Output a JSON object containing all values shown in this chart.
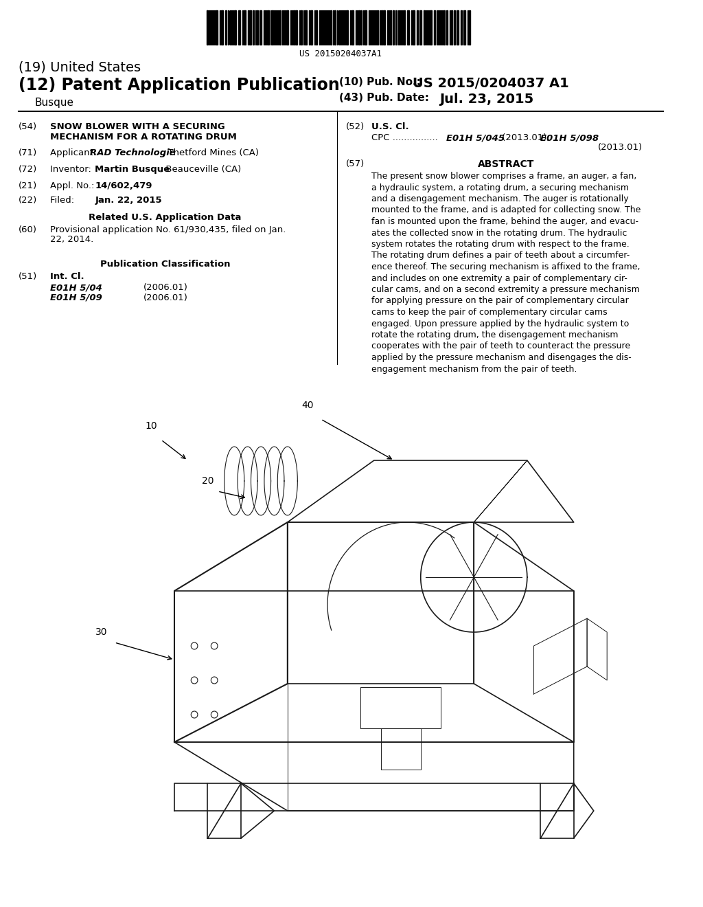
{
  "background_color": "#ffffff",
  "barcode_text": "US 20150204037A1",
  "line19": "(19) United States",
  "line12": "(12) Patent Application Publication",
  "inventor_last": "Busque",
  "pub_no_label": "(10) Pub. No.:",
  "pub_no": "US 2015/0204037 A1",
  "pub_date_label": "(43) Pub. Date:",
  "pub_date": "Jul. 23, 2015",
  "field54_label": "(54)",
  "field54": "SNOW BLOWER WITH A SECURING\nMECHANISM FOR A ROTATING DRUM",
  "field71_label": "(71)",
  "field71": "Applicant: RAD Technologie, Thetford Mines (CA)",
  "field72_label": "(72)",
  "field72": "Inventor:   Martin Busque, Beauceville (CA)",
  "field21_label": "(21)",
  "field21": "Appl. No.:  14/602,479",
  "field22_label": "(22)",
  "field22": "Filed:         Jan. 22, 2015",
  "related_header": "Related U.S. Application Data",
  "field60_label": "(60)",
  "field60": "Provisional application No. 61/930,435, filed on Jan.\n22, 2014.",
  "pub_class_header": "Publication Classification",
  "field51_label": "(51)",
  "field51_header": "Int. Cl.",
  "field51_a": "E01H 5/04",
  "field51_a_date": "(2006.01)",
  "field51_b": "E01H 5/09",
  "field51_b_date": "(2006.01)",
  "field52_label": "(52)",
  "field52_header": "U.S. Cl.",
  "field52_cpc": "CPC ................ E01H 5/045 (2013.01); E01H 5/098\n(2013.01)",
  "field57_label": "(57)",
  "field57_header": "ABSTRACT",
  "abstract": "The present snow blower comprises a frame, an auger, a fan,\na hydraulic system, a rotating drum, a securing mechanism\nand a disengagement mechanism. The auger is rotationally\nmounted to the frame, and is adapted for collecting snow. The\nfan is mounted upon the frame, behind the auger, and evacu-\nates the collected snow in the rotating drum. The hydraulic\nsystem rotates the rotating drum with respect to the frame.\nThe rotating drum defines a pair of teeth about a circumfer-\nence thereof. The securing mechanism is affixed to the frame,\nand includes on one extremity a pair of complementary cir-\ncular cams, and on a second extremity a pressure mechanism\nfor applying pressure on the pair of complementary circular\ncams to keep the pair of complementary circular cams\nengaged. Upon pressure applied by the hydraulic system to\nrotate the rotating drum, the disengagement mechanism\ncooperates with the pair of teeth to counteract the pressure\napplied by the pressure mechanism and disengages the dis-\nengagement mechanism from the pair of teeth.",
  "diagram_label10": "10",
  "diagram_label20": "20",
  "diagram_label30": "30",
  "diagram_label40": "40"
}
